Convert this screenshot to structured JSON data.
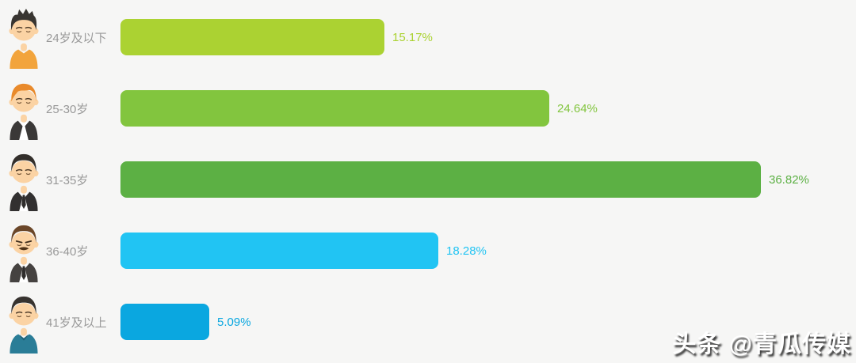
{
  "background_color": "#f6f6f5",
  "chart_data": {
    "type": "bar",
    "orientation": "horizontal",
    "title": "",
    "categories": [
      "24岁及以下",
      "25-30岁",
      "31-35岁",
      "36-40岁",
      "41岁及以上"
    ],
    "values": [
      15.17,
      24.64,
      36.82,
      18.28,
      5.09
    ],
    "value_labels": [
      "15.17%",
      "24.64%",
      "36.82%",
      "18.28%",
      "5.09%"
    ],
    "bar_colors": [
      "#abd232",
      "#82c53e",
      "#5cb044",
      "#21c4f3",
      "#0aa7e0"
    ],
    "category_label_color": "#999999",
    "avatar_icons": [
      "avatar-young-man-orange-shirt-icon",
      "avatar-man-orange-hair-suit-icon",
      "avatar-man-black-hair-suit-icon",
      "avatar-man-mustache-suit-icon",
      "avatar-older-man-teal-shirt-icon"
    ],
    "xlim": [
      0,
      42
    ],
    "xlabel": "",
    "ylabel": "",
    "axis": "hidden",
    "grid": false,
    "legend": "none"
  },
  "watermark": {
    "text": "头条 @青瓜传媒"
  }
}
